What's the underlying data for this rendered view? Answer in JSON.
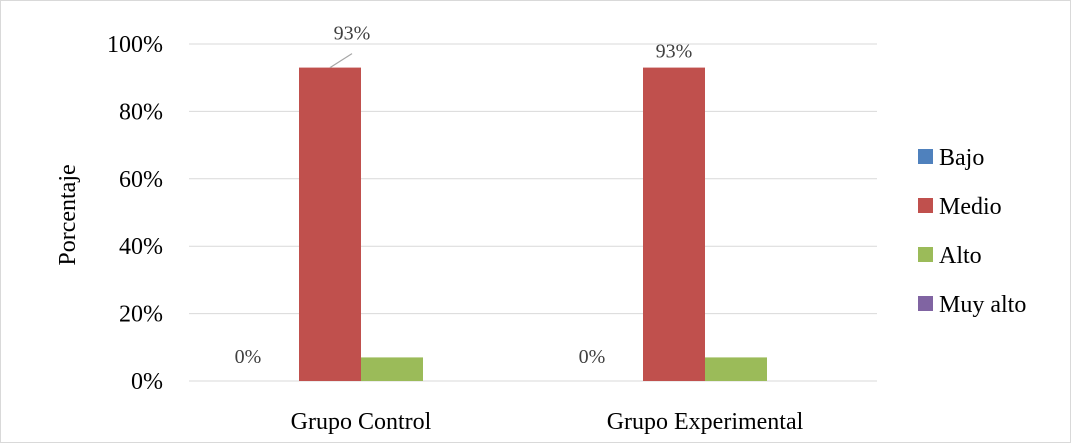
{
  "chart_data": {
    "type": "bar",
    "title": "",
    "xlabel": "",
    "ylabel": "Porcentaje",
    "ylim": [
      0,
      100
    ],
    "yticks": [
      "0%",
      "20%",
      "40%",
      "60%",
      "80%",
      "100%"
    ],
    "categories": [
      "Grupo Control",
      "Grupo Experimental"
    ],
    "series": [
      {
        "name": "Bajo",
        "color": "#4f81bd",
        "values": [
          0,
          0
        ],
        "labels": [
          "0%",
          "0%"
        ]
      },
      {
        "name": "Medio",
        "color": "#c0504d",
        "values": [
          93,
          93
        ],
        "labels": [
          "93%",
          "93%"
        ]
      },
      {
        "name": "Alto",
        "color": "#9bbb59",
        "values": [
          7,
          7
        ],
        "labels": [
          "",
          ""
        ]
      },
      {
        "name": "Muy alto",
        "color": "#8064a2",
        "values": [
          0,
          0
        ],
        "labels": [
          "",
          ""
        ]
      }
    ],
    "grid": true,
    "legend_position": "right"
  }
}
